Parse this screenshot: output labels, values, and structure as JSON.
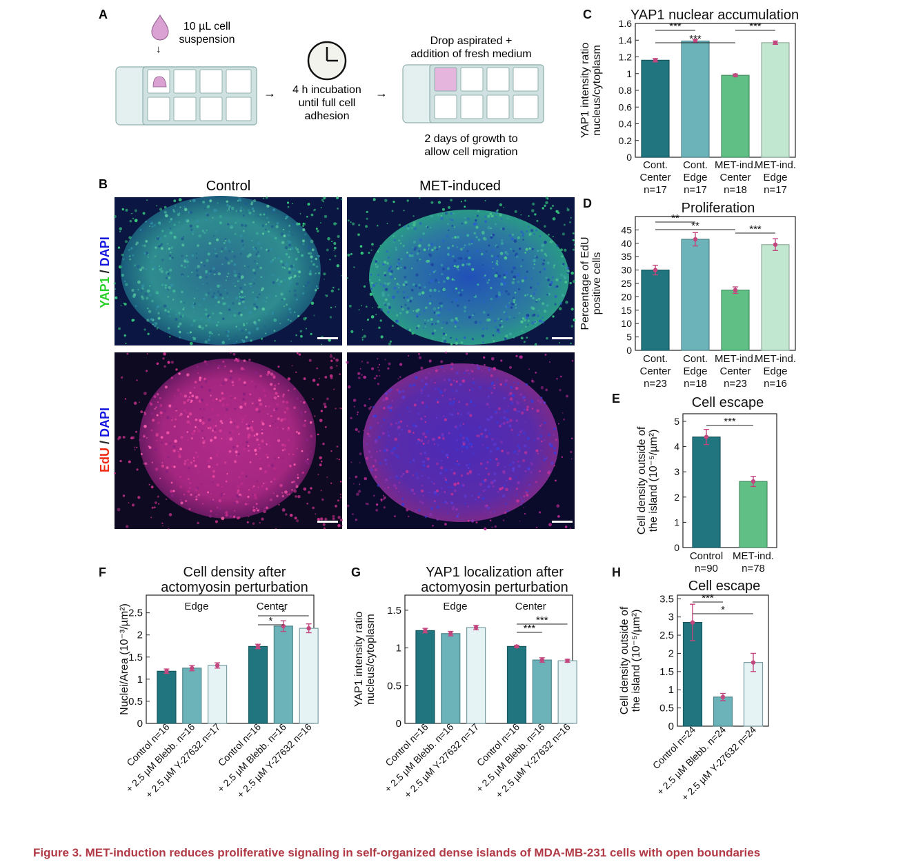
{
  "caption": "Figure 3.  MET-induction reduces proliferative signaling in self-organized dense islands of MDA-MB-231 cells with open boundaries",
  "colors": {
    "control": "#20757f",
    "control_edge": "#6bb2b9",
    "met_center": "#5fbf84",
    "met_edge": "#c1e7d0",
    "pale": "#e6f3f4",
    "marker": "#c2477f",
    "yap_label": "#2bd12b",
    "dapi_label": "#1515e0",
    "edu_label": "#ee2a10"
  },
  "panel_a": {
    "letter": "A",
    "drop_text": [
      "10 µL cell",
      "suspension"
    ],
    "incubation_text": [
      "4 h incubation",
      "until full cell",
      "adhesion"
    ],
    "aspirated_text": [
      "Drop aspirated +",
      "addition of fresh medium"
    ],
    "growth_text": [
      "2 days of growth to",
      "allow cell migration"
    ],
    "arrow": "→",
    "down_arrow": "↓"
  },
  "panel_b": {
    "letter": "B",
    "col_titles": [
      "Control",
      "MET-induced"
    ],
    "row1_label": [
      {
        "text": "YAP1",
        "color": "yap"
      },
      {
        "text": " / ",
        "color": "dark"
      },
      {
        "text": "DAPI",
        "color": "dapi"
      }
    ],
    "row2_label": [
      {
        "text": "EdU",
        "color": "edu"
      },
      {
        "text": " / ",
        "color": "dark"
      },
      {
        "text": "DAPI",
        "color": "dapi"
      }
    ]
  },
  "chart_data": [
    {
      "id": "C",
      "type": "bar",
      "title": "YAP1 nuclear accumulation",
      "ylabel": [
        "YAP1 intensity ratio",
        "nucleus/cytoplasm"
      ],
      "ylim": [
        0,
        1.6
      ],
      "yticks": [
        0,
        0.2,
        0.4,
        0.6,
        0.8,
        1,
        1.2,
        1.4,
        1.6
      ],
      "yticklabels": [
        "0",
        "0.2",
        "0.4",
        "0.6",
        "0.8",
        "1",
        "1.2",
        "1.4",
        "1.6"
      ],
      "categories": [
        [
          "Cont.",
          "Center",
          "n=17"
        ],
        [
          "Cont.",
          "Edge",
          "n=17"
        ],
        [
          "MET-ind.",
          "Center",
          "n=18"
        ],
        [
          "MET-ind.",
          "Edge",
          "n=17"
        ]
      ],
      "values": [
        1.16,
        1.39,
        0.98,
        1.37
      ],
      "errors": [
        0.02,
        0.02,
        0.015,
        0.02
      ],
      "colors": [
        "control",
        "control_edge",
        "met_center",
        "met_edge"
      ],
      "significance": [
        {
          "from": 0,
          "to": 1,
          "label": "***"
        },
        {
          "from": 0,
          "to": 2,
          "label": "***"
        },
        {
          "from": 2,
          "to": 3,
          "label": "***"
        }
      ]
    },
    {
      "id": "D",
      "type": "bar",
      "title": "Proliferation",
      "ylabel": [
        "Percentage of EdU",
        "positive cells"
      ],
      "ylim": [
        0,
        50
      ],
      "yticks": [
        0,
        5,
        10,
        15,
        20,
        25,
        30,
        35,
        40,
        45
      ],
      "yticklabels": [
        "0",
        "5",
        "10",
        "15",
        "20",
        "25",
        "30",
        "35",
        "40",
        "45"
      ],
      "categories": [
        [
          "Cont.",
          "Center",
          "n=23"
        ],
        [
          "Cont.",
          "Edge",
          "n=18"
        ],
        [
          "MET-ind.",
          "Center",
          "n=23"
        ],
        [
          "MET-ind.",
          "Edge",
          "n=16"
        ]
      ],
      "values": [
        30,
        41.5,
        22.5,
        39.5
      ],
      "errors": [
        1.8,
        2.5,
        1.2,
        2.2
      ],
      "colors": [
        "control",
        "control_edge",
        "met_center",
        "met_edge"
      ],
      "significance": [
        {
          "from": 0,
          "to": 1,
          "label": "**"
        },
        {
          "from": 0,
          "to": 2,
          "label": "**"
        },
        {
          "from": 2,
          "to": 3,
          "label": "***"
        }
      ]
    },
    {
      "id": "E",
      "type": "bar",
      "title": "Cell escape",
      "ylabel": [
        "Cell density outside of",
        "the island (10⁻⁵/µm²)"
      ],
      "ylim": [
        0,
        5.3
      ],
      "yticks": [
        0,
        1,
        2,
        3,
        4,
        5
      ],
      "yticklabels": [
        "0",
        "1",
        "2",
        "3",
        "4",
        "5"
      ],
      "categories": [
        [
          "Control",
          "n=90"
        ],
        [
          "MET-ind.",
          "n=78"
        ]
      ],
      "values": [
        4.38,
        2.62
      ],
      "errors": [
        0.3,
        0.2
      ],
      "colors": [
        "control",
        "met_center"
      ],
      "significance": [
        {
          "from": 0,
          "to": 1,
          "label": "***"
        }
      ]
    },
    {
      "id": "F",
      "type": "bar",
      "title": [
        "Cell density after",
        "actomyosin perturbation"
      ],
      "ylabel": [
        "Nuclei/Area (10⁻³/µm²)"
      ],
      "ylim": [
        0,
        2.9
      ],
      "yticks": [
        0,
        0.5,
        1,
        1.5,
        2,
        2.5
      ],
      "yticklabels": [
        "0",
        "0.5",
        "1",
        "1.5",
        "2",
        "2.5"
      ],
      "group_labels": [
        "Edge",
        "Center"
      ],
      "categories": [
        "Control n=16",
        "+ 2.5 µM Blebb. n=16",
        "+ 2.5 µM Y-27632 n=17",
        "Control n=16",
        "+ 2.5 µM Blebb. n=16",
        "+ 2.5 µM Y-27632 n=16"
      ],
      "values": [
        1.18,
        1.25,
        1.31,
        1.74,
        2.2,
        2.15
      ],
      "errors": [
        0.05,
        0.06,
        0.06,
        0.05,
        0.12,
        0.1
      ],
      "colors": [
        "control",
        "control_edge",
        "pale",
        "control",
        "control_edge",
        "pale"
      ],
      "significance": [
        {
          "from": 3,
          "to": 4,
          "label": "*"
        },
        {
          "from": 3,
          "to": 5,
          "label": "*"
        }
      ]
    },
    {
      "id": "G",
      "type": "bar",
      "title": [
        "YAP1 localization after",
        "actomyosin perturbation"
      ],
      "ylabel": [
        "YAP1 intensity ratio",
        "nucleus/cytoplasm"
      ],
      "ylim": [
        0,
        1.7
      ],
      "yticks": [
        0,
        0.5,
        1,
        1.5
      ],
      "yticklabels": [
        "0",
        "0.5",
        "1",
        "1.5"
      ],
      "group_labels": [
        "Edge",
        "Center"
      ],
      "categories": [
        "Control n=16",
        "+ 2.5 µM Blebb. n=16",
        "+ 2.5 µM Y-27632 n=17",
        "Control n=16",
        "+ 2.5 µM Blebb. n=16",
        "+ 2.5 µM Y-27632 n=16"
      ],
      "values": [
        1.23,
        1.19,
        1.27,
        1.02,
        0.84,
        0.83
      ],
      "errors": [
        0.03,
        0.03,
        0.03,
        0.015,
        0.03,
        0.02
      ],
      "colors": [
        "control",
        "control_edge",
        "pale",
        "control",
        "control_edge",
        "pale"
      ],
      "significance": [
        {
          "from": 3,
          "to": 4,
          "label": "***"
        },
        {
          "from": 3,
          "to": 5,
          "label": "***"
        }
      ]
    },
    {
      "id": "H",
      "type": "bar",
      "title": "Cell escape",
      "ylabel": [
        "Cell density outside of",
        "the island (10⁻⁵/µm²)"
      ],
      "ylim": [
        0,
        3.6
      ],
      "yticks": [
        0,
        0.5,
        1,
        1.5,
        2,
        2.5,
        3,
        3.5
      ],
      "yticklabels": [
        "0",
        "0.5",
        "1",
        "1.5",
        "2",
        "2.5",
        "3",
        "3.5"
      ],
      "categories": [
        "Control n=24",
        "+ 2.5 µM Blebb. n=24",
        "+ 2.5 µM Y-27632 n=24"
      ],
      "values": [
        2.85,
        0.8,
        1.75
      ],
      "errors": [
        0.5,
        0.1,
        0.25
      ],
      "colors": [
        "control",
        "control_edge",
        "pale"
      ],
      "significance": [
        {
          "from": 0,
          "to": 1,
          "label": "***"
        },
        {
          "from": 0,
          "to": 2,
          "label": "*"
        }
      ]
    }
  ]
}
